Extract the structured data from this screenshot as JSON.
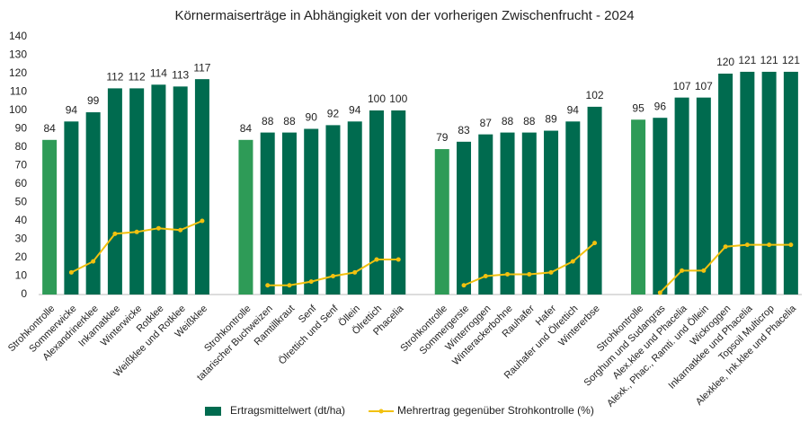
{
  "chart_data": {
    "type": "bar",
    "title": "Körnermaiserträge in Abhängigkeit von der vorherigen Zwischenfrucht - 2024",
    "categories": [
      "Strohkontrolle",
      "Sommerwicke",
      "Alexandrinerklee",
      "Inkarnatklee",
      "Winterwicke",
      "Rotklee",
      "Weißklee und Rotklee",
      "Weißklee",
      null,
      "Strohkontrolle",
      "tatarischer Buchweizen",
      "Ramtillkraut",
      "Senf",
      "Ölrettich und Senf",
      "Öllein",
      "Ölrettich",
      "Phacelia",
      null,
      "Strohkontrolle",
      "Sommergerste",
      "Winterroggen",
      "Winterackerbohne",
      "Rauhafer",
      "Hafer",
      "Rauhafer und Ölrettich",
      "Wintererbse",
      null,
      "Strohkontrolle",
      "Sorghum und Sudangras",
      "Alex.klee und Phacelia",
      "Alexk., Phac., Ramti. und Öllein",
      "Wickroggen",
      "Inkarnatklee und Phacelia",
      "Topsoil Multicrop",
      "Alexklee, Ink.klee und Phacelia"
    ],
    "series": [
      {
        "name": "Ertragsmittelwert (dt/ha)",
        "type": "bar",
        "color": "#006b4f",
        "colors": [
          "#2e9b57",
          "#006b4f",
          "#006b4f",
          "#006b4f",
          "#006b4f",
          "#006b4f",
          "#006b4f",
          "#006b4f",
          null,
          "#2e9b57",
          "#006b4f",
          "#006b4f",
          "#006b4f",
          "#006b4f",
          "#006b4f",
          "#006b4f",
          "#006b4f",
          null,
          "#2e9b57",
          "#006b4f",
          "#006b4f",
          "#006b4f",
          "#006b4f",
          "#006b4f",
          "#006b4f",
          "#006b4f",
          null,
          "#2e9b57",
          "#006b4f",
          "#006b4f",
          "#006b4f",
          "#006b4f",
          "#006b4f",
          "#006b4f",
          "#006b4f"
        ],
        "values": [
          84,
          94,
          99,
          112,
          112,
          114,
          113,
          117,
          null,
          84,
          88,
          88,
          90,
          92,
          94,
          100,
          100,
          null,
          79,
          83,
          87,
          88,
          88,
          89,
          94,
          102,
          null,
          95,
          96,
          107,
          107,
          120,
          121,
          121,
          121
        ]
      },
      {
        "name": "Mehrertrag gegenüber Strohkontrolle (%)",
        "type": "line",
        "color": "#f2c10f",
        "values": [
          null,
          12,
          18,
          33,
          34,
          36,
          35,
          40,
          null,
          null,
          5,
          5,
          7,
          10,
          12,
          19,
          19,
          null,
          null,
          5,
          10,
          11,
          11,
          12,
          18,
          28,
          null,
          null,
          1,
          13,
          13,
          26,
          27,
          27,
          27
        ]
      }
    ],
    "ylim": [
      0,
      140
    ],
    "yticks": [
      0,
      10,
      20,
      30,
      40,
      50,
      60,
      70,
      80,
      90,
      100,
      110,
      120,
      130,
      140
    ],
    "grid": false,
    "legend": "bottom"
  }
}
